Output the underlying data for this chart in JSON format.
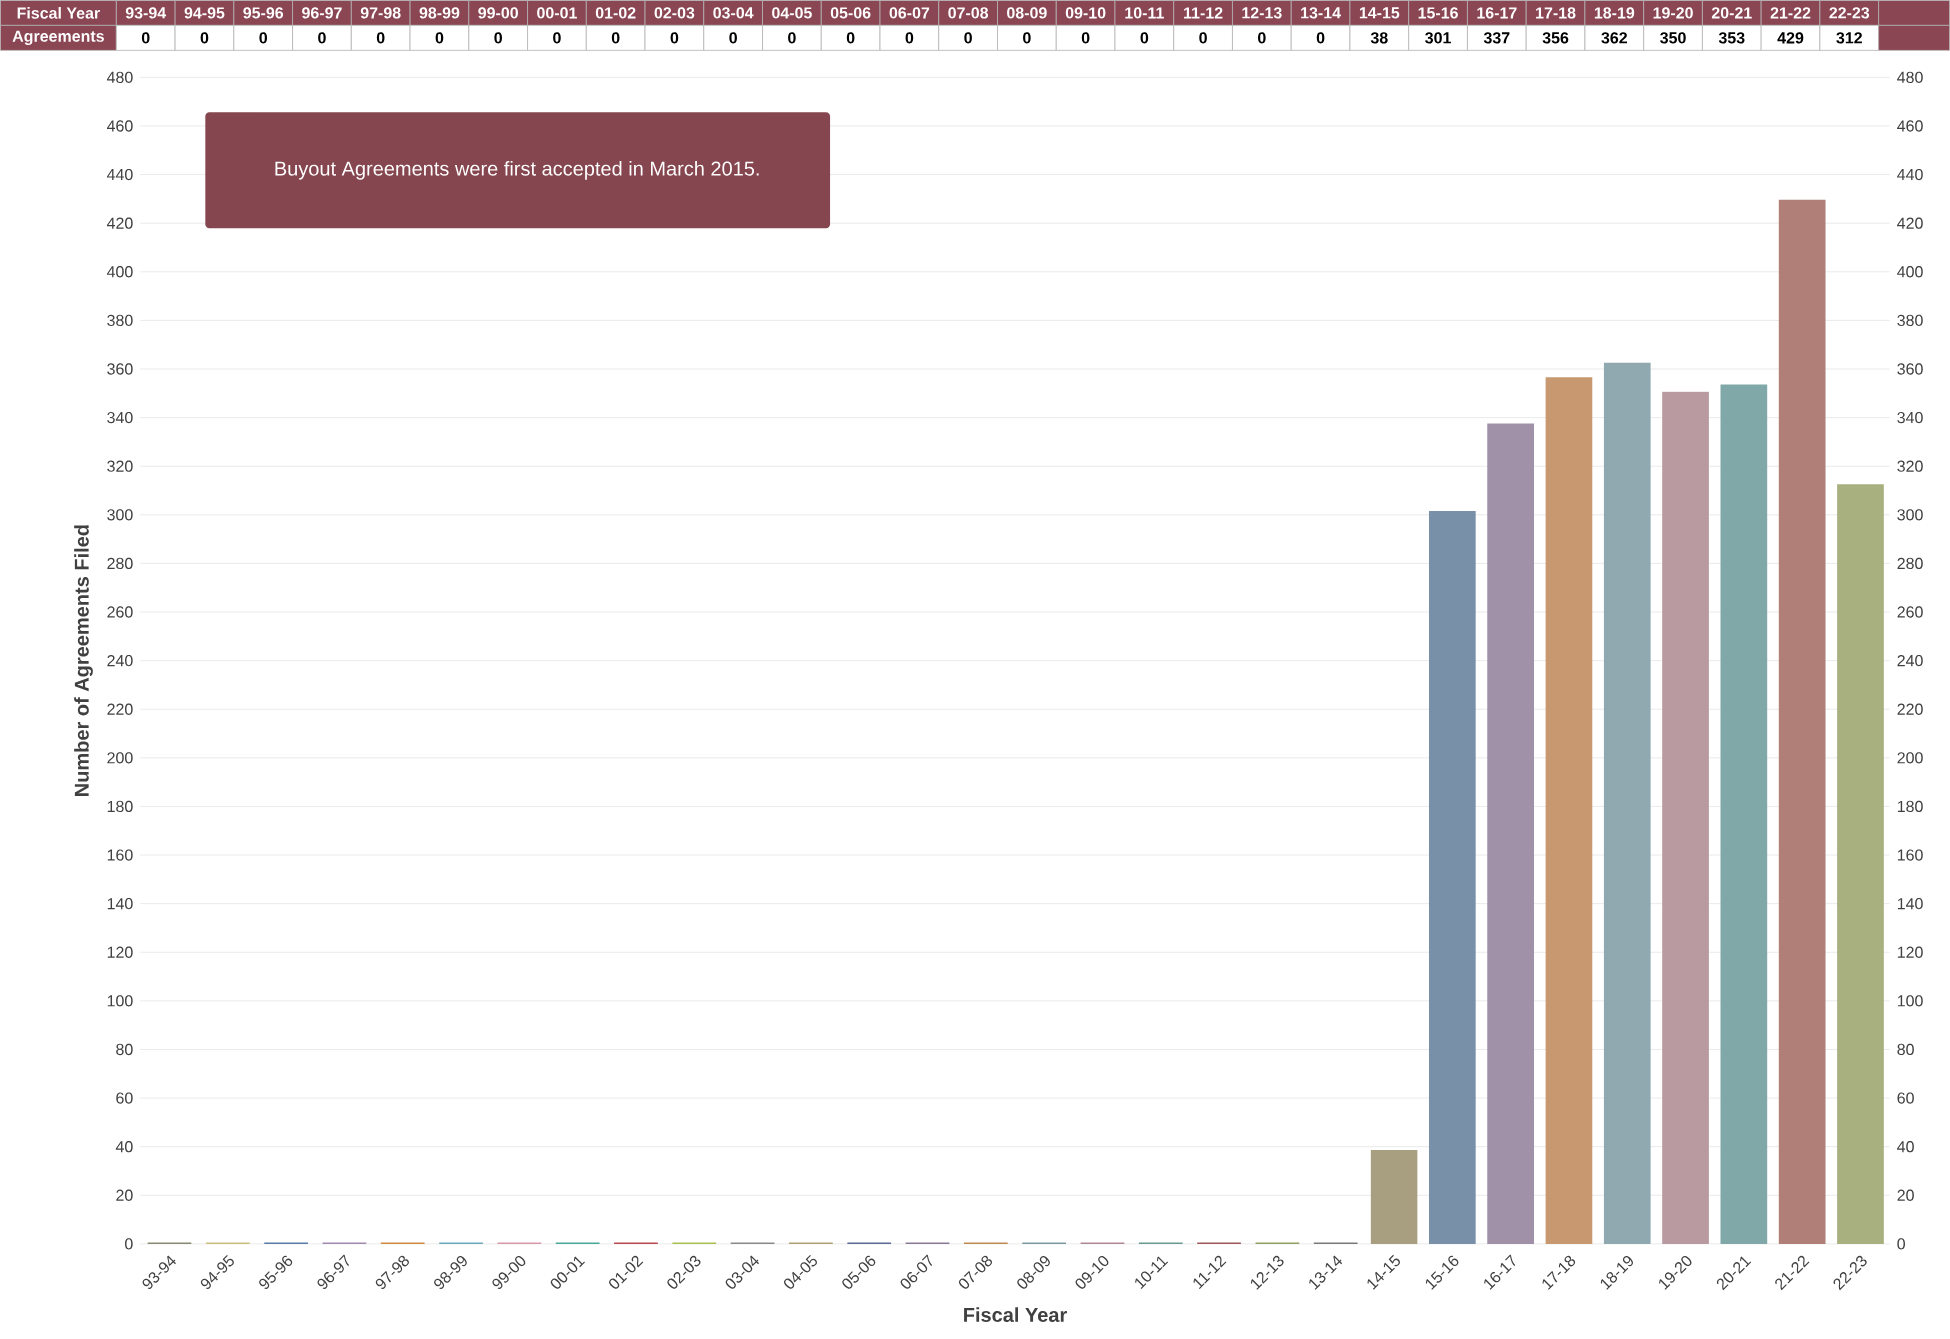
{
  "chart_data": {
    "type": "bar",
    "xlabel": "Fiscal Year",
    "ylabel": "Number of Agreements Filed",
    "categories": [
      "93-94",
      "94-95",
      "95-96",
      "96-97",
      "97-98",
      "98-99",
      "99-00",
      "00-01",
      "01-02",
      "02-03",
      "03-04",
      "04-05",
      "05-06",
      "06-07",
      "07-08",
      "08-09",
      "09-10",
      "10-11",
      "11-12",
      "12-13",
      "13-14",
      "14-15",
      "15-16",
      "16-17",
      "17-18",
      "18-19",
      "19-20",
      "20-21",
      "21-22",
      "22-23"
    ],
    "series": [
      {
        "name": "Agreements",
        "values": [
          0,
          0,
          0,
          0,
          0,
          0,
          0,
          0,
          0,
          0,
          0,
          0,
          0,
          0,
          0,
          0,
          0,
          0,
          0,
          0,
          0,
          38,
          301,
          337,
          356,
          362,
          350,
          353,
          429,
          312
        ],
        "colors": [
          "#8a8a72",
          "#c8c07a",
          "#5a7aa8",
          "#a08ab0",
          "#d08a40",
          "#6aaab8",
          "#d898a8",
          "#4aa898",
          "#b84a50",
          "#a8c050",
          "#8a8a8a",
          "#b0a070",
          "#5a6a98",
          "#8a7a98",
          "#c08a50",
          "#7a9aa0",
          "#b08898",
          "#6a9a90",
          "#a05858",
          "#90a060",
          "#7a7a7a",
          "#a89e80",
          "#7890a8",
          "#a090a8",
          "#c89870",
          "#90a8b0",
          "#b89aa0",
          "#80a8a8",
          "#b08078",
          "#a8b080"
        ]
      }
    ],
    "ylim": [
      0,
      480
    ],
    "yticks": [
      0,
      20,
      40,
      60,
      80,
      100,
      120,
      140,
      160,
      180,
      200,
      220,
      240,
      260,
      280,
      300,
      320,
      340,
      360,
      380,
      400,
      420,
      440,
      460,
      480
    ],
    "y2lim": [
      0,
      480
    ],
    "y2ticks": [
      0,
      20,
      40,
      60,
      80,
      100,
      120,
      140,
      160,
      180,
      200,
      220,
      240,
      260,
      280,
      300,
      320,
      340,
      360,
      380,
      400,
      420,
      440,
      460,
      480
    ],
    "grid": "y",
    "data_labels": true,
    "annotations": [
      "Buyout Agreements were first accepted in March 2015."
    ]
  }
}
